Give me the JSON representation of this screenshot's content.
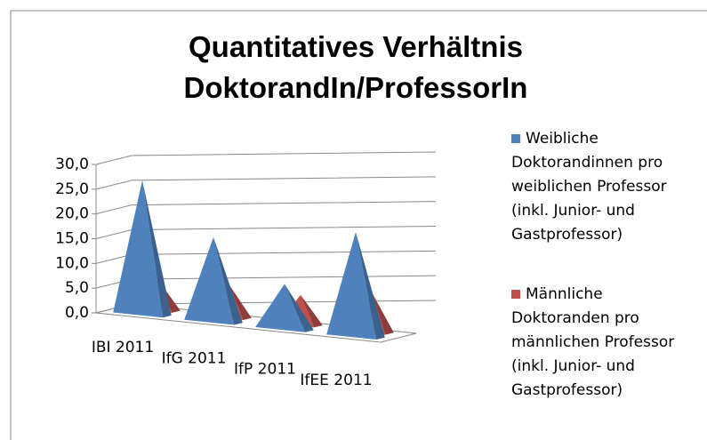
{
  "chart_data": {
    "type": "pyramid3d",
    "title": "Quantitatives Verhältnis DoktorandIn/ProfessorIn",
    "categories": [
      "IBI 2011",
      "IfG 2011",
      "IfP 2011",
      "IfEE 2011"
    ],
    "series": [
      {
        "name": "Weibliche Doktorandinnen pro weiblichen Professor (inkl. Junior- und Gastprofessor)",
        "color": "#4f81bd",
        "values": [
          27,
          17,
          9,
          21
        ]
      },
      {
        "name": "Männliche Doktoranden pro männlichen Professor (inkl. Junior- und Gastprofessor)",
        "color": "#c0504d",
        "values": [
          6,
          6.5,
          6,
          8
        ]
      }
    ],
    "ylim": [
      0,
      30
    ],
    "yticks": [
      {
        "value": 0,
        "label": "0,0"
      },
      {
        "value": 5,
        "label": "5,0"
      },
      {
        "value": 10,
        "label": "10,0"
      },
      {
        "value": 15,
        "label": "15,0"
      },
      {
        "value": 20,
        "label": "20,0"
      },
      {
        "value": 25,
        "label": "25,0"
      },
      {
        "value": 30,
        "label": "30,0"
      }
    ],
    "grid": true
  }
}
